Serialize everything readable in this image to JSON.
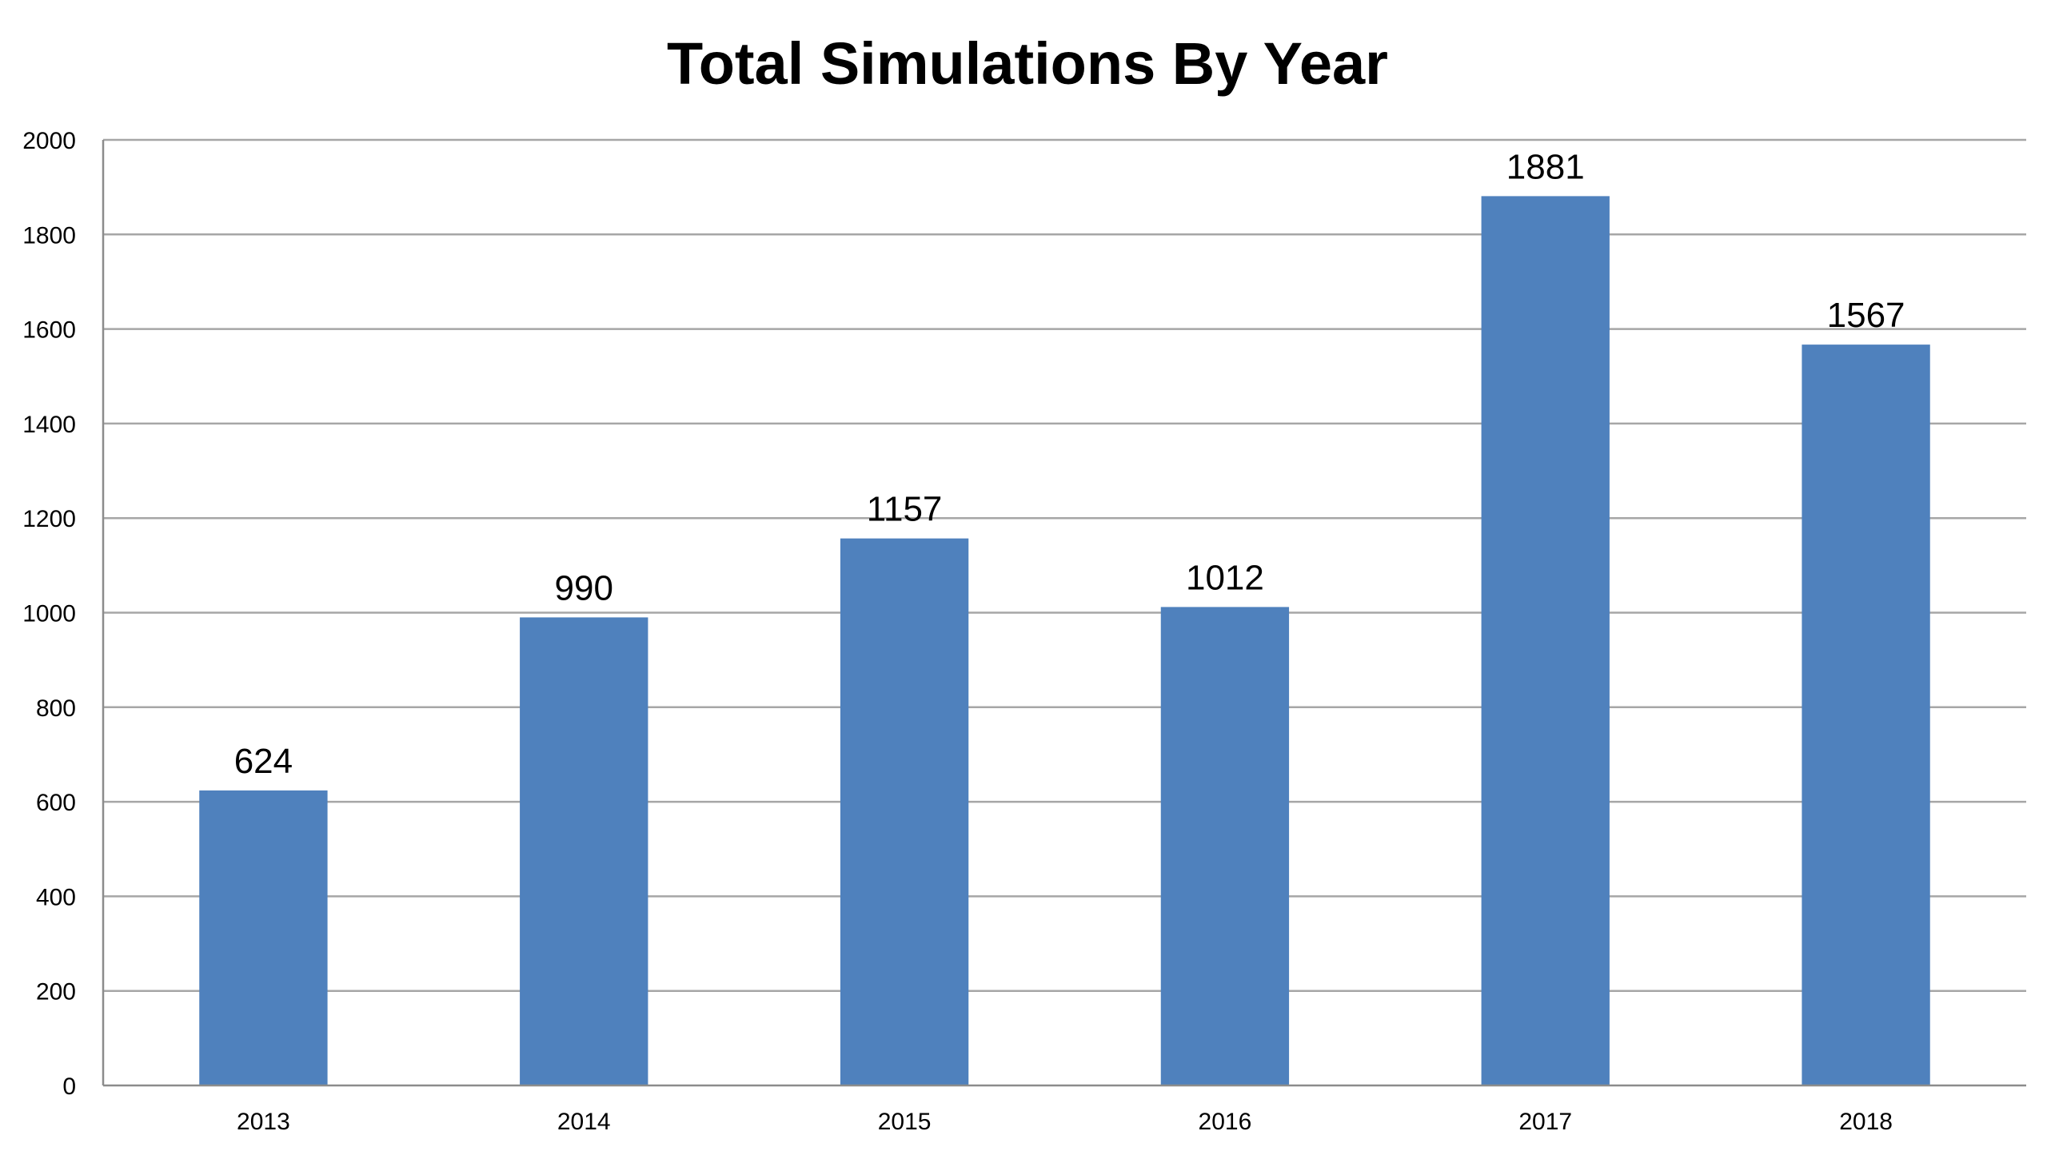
{
  "chart_data": {
    "type": "bar",
    "title": "Total Simulations By Year",
    "xlabel": "",
    "ylabel": "",
    "categories": [
      "2013",
      "2014",
      "2015",
      "2016",
      "2017",
      "2018"
    ],
    "values": [
      624,
      990,
      1157,
      1012,
      1881,
      1567
    ],
    "data_labels": [
      "624",
      "990",
      "1157",
      "1012",
      "1881",
      "1567"
    ],
    "ylim": [
      0,
      2000
    ],
    "yticks": [
      "0",
      "200",
      "400",
      "600",
      "800",
      "1000",
      "1200",
      "1400",
      "1600",
      "1800",
      "2000"
    ],
    "ytick_values": [
      0,
      200,
      400,
      600,
      800,
      1000,
      1200,
      1400,
      1600,
      1800,
      2000
    ],
    "grid": true,
    "legend": "none",
    "bar_color": "#4f81bd"
  }
}
